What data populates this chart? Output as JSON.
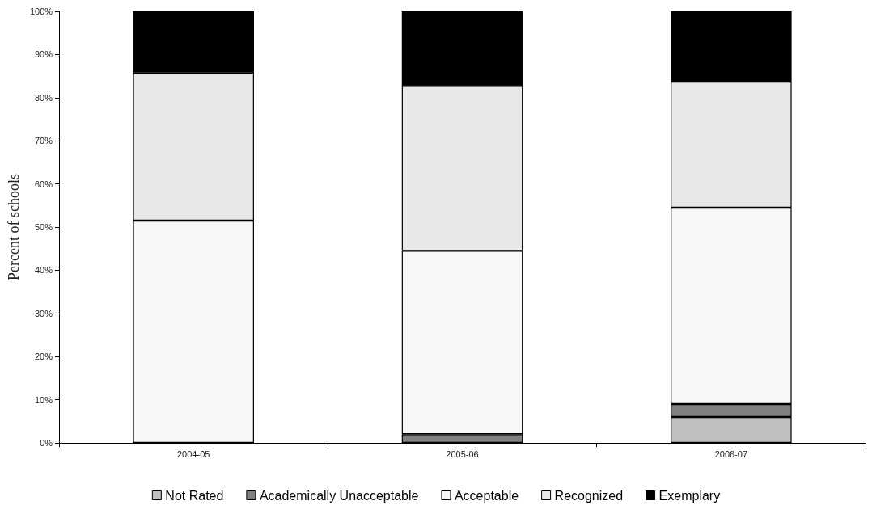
{
  "chart_data": {
    "type": "bar",
    "stacked": true,
    "ylabel": "Percent of schools",
    "categories": [
      "2004-05",
      "2005-06",
      "2006-07"
    ],
    "series": [
      {
        "name": "Not Rated",
        "color": "#c0c0c0",
        "values": [
          0,
          0,
          6
        ]
      },
      {
        "name": "Academically Unacceptable",
        "color": "#808080",
        "values": [
          0,
          2,
          3
        ]
      },
      {
        "name": "Acceptable",
        "color": "#f7f7f7",
        "values": [
          51.5,
          42.5,
          45.5
        ]
      },
      {
        "name": "Recognized",
        "color": "#e8e8e8",
        "values": [
          34.3,
          38.2,
          29.2
        ]
      },
      {
        "name": "Exemplary",
        "color": "#000000",
        "values": [
          14.2,
          17.3,
          16.3
        ]
      }
    ],
    "ylim": [
      0,
      100
    ],
    "yticks": [
      {
        "value": 0,
        "label": "0%"
      },
      {
        "value": 10,
        "label": "10%"
      },
      {
        "value": 20,
        "label": "20%"
      },
      {
        "value": 30,
        "label": "30%"
      },
      {
        "value": 40,
        "label": "40%"
      },
      {
        "value": 50,
        "label": "50%"
      },
      {
        "value": 60,
        "label": "60%"
      },
      {
        "value": 70,
        "label": "70%"
      },
      {
        "value": 80,
        "label": "80%"
      },
      {
        "value": 90,
        "label": "90%"
      },
      {
        "value": 100,
        "label": "100%"
      }
    ],
    "grid": false,
    "legend": "bottom"
  }
}
